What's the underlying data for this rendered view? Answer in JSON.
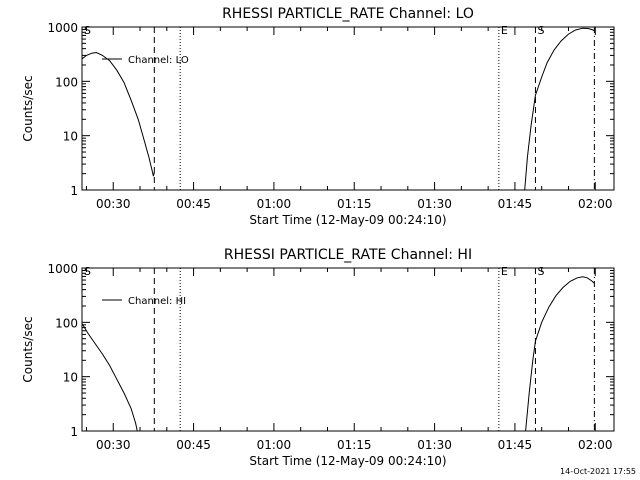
{
  "chart_data": [
    {
      "type": "line",
      "title": "RHESSI PARTICLE_RATE Channel: LO",
      "xlabel": "Start Time (12-May-09 00:24:10)",
      "ylabel": "Counts/sec",
      "y_scale": "log",
      "ylim": [
        1,
        1000
      ],
      "xlim": [
        "00:24:10",
        "02:03:30"
      ],
      "x_ticks": [
        "00:30",
        "00:45",
        "01:00",
        "01:15",
        "01:30",
        "01:45",
        "02:00"
      ],
      "y_ticks": [
        "1",
        "10",
        "100",
        "1000"
      ],
      "legend": {
        "label": "Channel: LO",
        "position": "top-left"
      },
      "grid": false,
      "markers": [
        {
          "label": "S",
          "time": "00:24:10",
          "style": "dash-dot"
        },
        {
          "label": "",
          "time": "00:37:40",
          "style": "dashed"
        },
        {
          "label": "",
          "time": "00:42:30",
          "style": "dotted"
        },
        {
          "label": "E",
          "time": "01:42:00",
          "style": "dotted"
        },
        {
          "label": "S",
          "time": "01:48:50",
          "style": "dashed"
        },
        {
          "label": "",
          "time": "01:59:50",
          "style": "dash-dot"
        }
      ],
      "series": [
        {
          "name": "Channel: LO",
          "segments": [
            [
              [
                "00:24:10",
                260
              ],
              [
                "00:25:00",
                300
              ],
              [
                "00:26:00",
                330
              ],
              [
                "00:26:50",
                340
              ],
              [
                "00:28:00",
                300
              ],
              [
                "00:29:20",
                240
              ],
              [
                "00:30:40",
                160
              ],
              [
                "00:32:00",
                95
              ],
              [
                "00:33:20",
                45
              ],
              [
                "00:34:40",
                20
              ],
              [
                "00:35:40",
                9
              ],
              [
                "00:36:40",
                4
              ],
              [
                "00:37:10",
                2.5
              ],
              [
                "00:37:30",
                1.8
              ],
              [
                "00:37:40",
                2.1
              ]
            ],
            [
              [
                "01:46:50",
                1
              ],
              [
                "01:47:20",
                4
              ],
              [
                "01:48:00",
                15
              ],
              [
                "01:48:50",
                55
              ],
              [
                "01:50:00",
                120
              ],
              [
                "01:51:00",
                220
              ],
              [
                "01:52:20",
                380
              ],
              [
                "01:53:40",
                560
              ],
              [
                "01:55:00",
                740
              ],
              [
                "01:56:20",
                880
              ],
              [
                "01:57:40",
                950
              ],
              [
                "01:58:40",
                940
              ],
              [
                "01:59:20",
                900
              ],
              [
                "01:59:50",
                860
              ]
            ]
          ]
        }
      ]
    },
    {
      "type": "line",
      "title": "RHESSI PARTICLE_RATE Channel: HI",
      "xlabel": "Start Time (12-May-09 00:24:10)",
      "ylabel": "Counts/sec",
      "y_scale": "log",
      "ylim": [
        1,
        1000
      ],
      "xlim": [
        "00:24:10",
        "02:03:30"
      ],
      "x_ticks": [
        "00:30",
        "00:45",
        "01:00",
        "01:15",
        "01:30",
        "01:45",
        "02:00"
      ],
      "y_ticks": [
        "1",
        "10",
        "100",
        "1000"
      ],
      "legend": {
        "label": "Channel: HI",
        "position": "top-left"
      },
      "grid": false,
      "markers": [
        {
          "label": "S",
          "time": "00:24:10",
          "style": "dash-dot"
        },
        {
          "label": "",
          "time": "00:37:40",
          "style": "dashed"
        },
        {
          "label": "",
          "time": "00:42:30",
          "style": "dotted"
        },
        {
          "label": "E",
          "time": "01:42:00",
          "style": "dotted"
        },
        {
          "label": "S",
          "time": "01:48:50",
          "style": "dashed"
        },
        {
          "label": "",
          "time": "01:59:50",
          "style": "dash-dot"
        }
      ],
      "series": [
        {
          "name": "Channel: HI",
          "segments": [
            [
              [
                "00:24:10",
                95
              ],
              [
                "00:25:20",
                62
              ],
              [
                "00:26:40",
                40
              ],
              [
                "00:28:00",
                26
              ],
              [
                "00:29:20",
                16
              ],
              [
                "00:30:40",
                9
              ],
              [
                "00:32:00",
                5
              ],
              [
                "00:33:20",
                2.6
              ],
              [
                "00:34:10",
                1.4
              ],
              [
                "00:34:30",
                1
              ]
            ],
            [
              [
                "01:47:00",
                1
              ],
              [
                "01:47:40",
                5
              ],
              [
                "01:48:20",
                20
              ],
              [
                "01:48:50",
                45
              ],
              [
                "01:50:00",
                100
              ],
              [
                "01:51:20",
                190
              ],
              [
                "01:52:40",
                310
              ],
              [
                "01:54:00",
                440
              ],
              [
                "01:55:20",
                570
              ],
              [
                "01:56:40",
                660
              ],
              [
                "01:57:40",
                690
              ],
              [
                "01:58:30",
                660
              ],
              [
                "01:59:20",
                580
              ],
              [
                "01:59:50",
                520
              ]
            ]
          ]
        }
      ]
    }
  ],
  "footer": {
    "timestamp": "14-Oct-2021 17:55"
  }
}
